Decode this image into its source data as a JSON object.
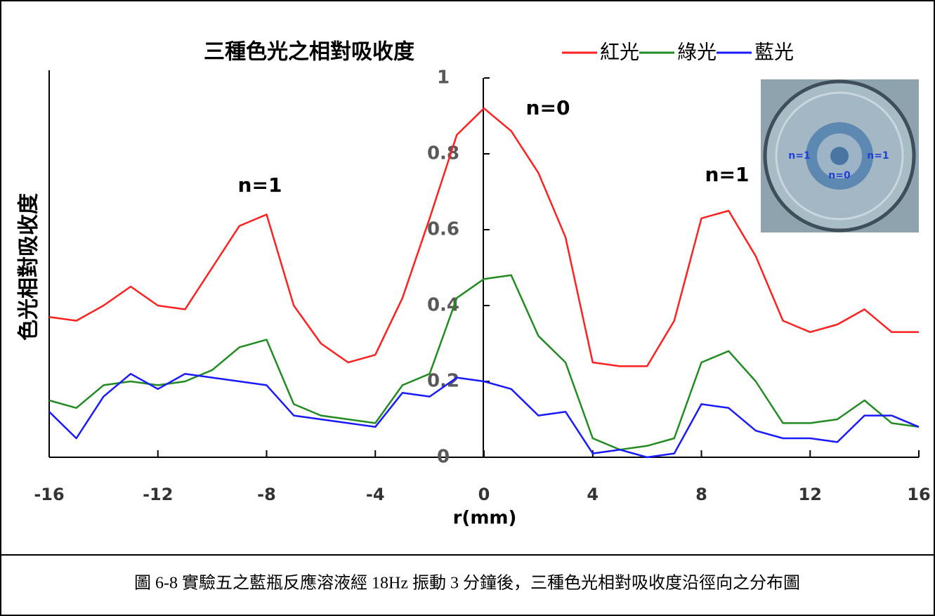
{
  "chart_data": {
    "type": "line",
    "title": "三種色光之相對吸收度",
    "x_label": "r(mm)",
    "y_label": "色光相對吸收度",
    "x": [
      -16,
      -15,
      -14,
      -13,
      -12,
      -11,
      -10,
      -9,
      -8,
      -7,
      -6,
      -5,
      -4,
      -3,
      -2,
      -1,
      0,
      1,
      2,
      3,
      4,
      5,
      6,
      7,
      8,
      9,
      10,
      11,
      12,
      13,
      14,
      15,
      16
    ],
    "series": [
      {
        "name": "紅光",
        "color": "#ff2020",
        "values": [
          0.37,
          0.36,
          0.4,
          0.45,
          0.4,
          0.39,
          0.5,
          0.61,
          0.64,
          0.4,
          0.3,
          0.25,
          0.27,
          0.42,
          0.63,
          0.85,
          0.92,
          0.86,
          0.75,
          0.58,
          0.25,
          0.24,
          0.24,
          0.36,
          0.63,
          0.65,
          0.53,
          0.36,
          0.33,
          0.35,
          0.39,
          0.33,
          0.33
        ]
      },
      {
        "name": "綠光",
        "color": "#228b22",
        "values": [
          0.15,
          0.13,
          0.19,
          0.2,
          0.19,
          0.2,
          0.23,
          0.29,
          0.31,
          0.14,
          0.11,
          0.1,
          0.09,
          0.19,
          0.22,
          0.42,
          0.47,
          0.48,
          0.32,
          0.25,
          0.05,
          0.02,
          0.03,
          0.05,
          0.25,
          0.28,
          0.2,
          0.09,
          0.09,
          0.1,
          0.15,
          0.09,
          0.08
        ]
      },
      {
        "name": "藍光",
        "color": "#1a1aff",
        "values": [
          0.12,
          0.05,
          0.16,
          0.22,
          0.18,
          0.22,
          0.21,
          0.2,
          0.19,
          0.11,
          0.1,
          0.09,
          0.08,
          0.17,
          0.16,
          0.21,
          0.2,
          0.18,
          0.11,
          0.12,
          0.01,
          0.02,
          0.0,
          0.01,
          0.14,
          0.13,
          0.07,
          0.05,
          0.05,
          0.04,
          0.11,
          0.11,
          0.08
        ]
      }
    ],
    "xlim": [
      -16,
      16
    ],
    "xticks": [
      -16,
      -12,
      -8,
      -4,
      0,
      4,
      8,
      12,
      16
    ],
    "ylim": [
      0,
      1
    ],
    "yticks": [
      0,
      0.2,
      0.4,
      0.6,
      0.8,
      1
    ],
    "annotations": [
      "n=0",
      "n=1",
      "n=1"
    ]
  },
  "inset": {
    "labels": [
      "n=1",
      "n=0",
      "n=1"
    ]
  },
  "caption": "圖 6-8 實驗五之藍瓶反應溶液經 18Hz 振動 3 分鐘後，三種色光相對吸收度沿徑向之分布圖"
}
